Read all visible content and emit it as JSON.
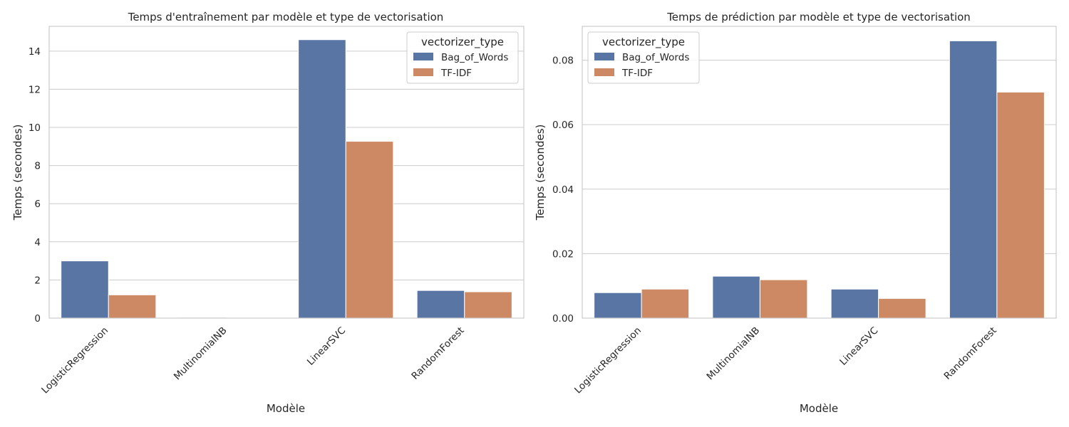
{
  "chart_data": [
    {
      "type": "bar",
      "title": "Temps d'entraînement par modèle et type de vectorisation",
      "xlabel": "Modèle",
      "ylabel": "Temps (secondes)",
      "categories": [
        "LogisticRegression",
        "MultinomialNB",
        "LinearSVC",
        "RandomForest"
      ],
      "series": [
        {
          "name": "Bag_of_Words",
          "values": [
            3.0,
            0.04,
            14.6,
            1.45
          ]
        },
        {
          "name": "TF-IDF",
          "values": [
            1.22,
            0.03,
            9.27,
            1.38
          ]
        }
      ],
      "ylim": [
        0,
        15.3
      ],
      "yticks": [
        0,
        2,
        4,
        6,
        8,
        10,
        12,
        14
      ],
      "ytick_labels": [
        "0",
        "2",
        "4",
        "6",
        "8",
        "10",
        "12",
        "14"
      ],
      "grid": true,
      "legend_title": "vectorizer_type",
      "legend_position": "top-right"
    },
    {
      "type": "bar",
      "title": "Temps de prédiction par modèle et type de vectorisation",
      "xlabel": "Modèle",
      "ylabel": "Temps (secondes)",
      "categories": [
        "LogisticRegression",
        "MultinomialNB",
        "LinearSVC",
        "RandomForest"
      ],
      "series": [
        {
          "name": "Bag_of_Words",
          "values": [
            0.0079,
            0.013,
            0.009,
            0.086
          ]
        },
        {
          "name": "TF-IDF",
          "values": [
            0.009,
            0.0119,
            0.0061,
            0.0701
          ]
        }
      ],
      "ylim": [
        0,
        0.0905
      ],
      "yticks": [
        0,
        0.02,
        0.04,
        0.06,
        0.08
      ],
      "ytick_labels": [
        "0.00",
        "0.02",
        "0.04",
        "0.06",
        "0.08"
      ],
      "grid": true,
      "legend_title": "vectorizer_type",
      "legend_position": "top-left"
    }
  ],
  "colors": {
    "Bag_of_Words": "#5875a4",
    "TF-IDF": "#cc8963",
    "grid": "#cccccc",
    "spine": "#cccccc",
    "text": "#262626"
  }
}
